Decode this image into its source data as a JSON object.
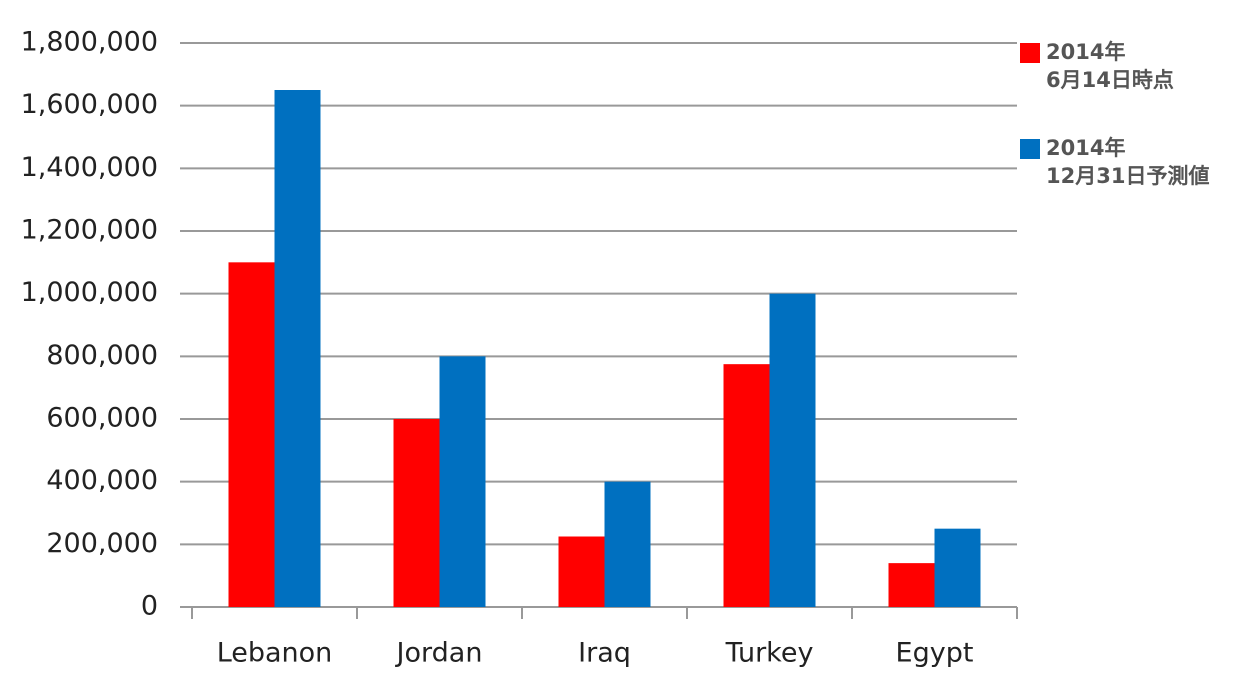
{
  "chart_data": {
    "type": "bar",
    "categories": [
      "Lebanon",
      "Jordan",
      "Iraq",
      "Turkey",
      "Egypt"
    ],
    "series": [
      {
        "name": "2014年\n6月14日時点",
        "color": "#ff0000",
        "values": [
          1100000,
          600000,
          225000,
          775000,
          140000
        ]
      },
      {
        "name": "2014年\n12月31日予測値",
        "color": "#0070c0",
        "values": [
          1650000,
          800000,
          400000,
          1000000,
          250000
        ]
      }
    ],
    "ylim": [
      0,
      1800000
    ],
    "yticks": [
      0,
      {
        "value": 200000,
        "label": "200,000"
      },
      {
        "value": 400000,
        "label": "400,000"
      },
      {
        "value": 600000,
        "label": "600,000"
      },
      {
        "value": 800000,
        "label": "800,000"
      },
      {
        "value": 1000000,
        "label": "1,000,000"
      },
      {
        "value": 1200000,
        "label": "1,200,000"
      },
      {
        "value": 1400000,
        "label": "1,400,000"
      },
      {
        "value": 1600000,
        "label": "1,600,000"
      },
      {
        "value": 1800000,
        "label": "1,800,000"
      }
    ],
    "grid": true,
    "legend": "right"
  }
}
